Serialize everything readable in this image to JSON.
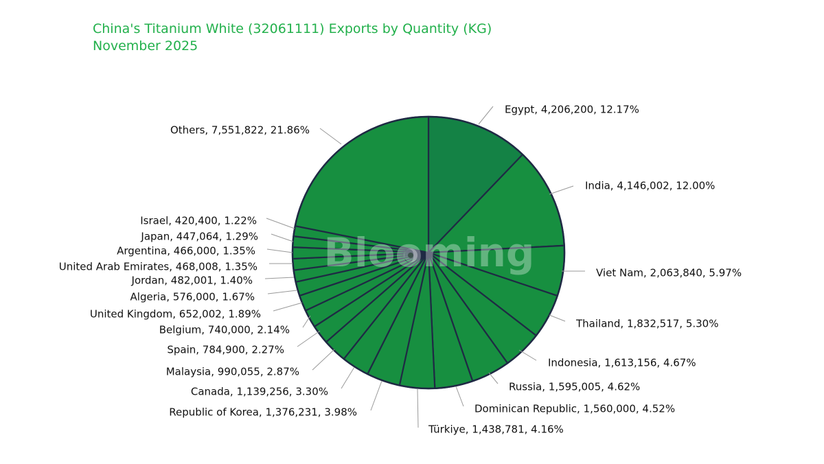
{
  "title_line1": "China's Titanium White (32061111) Exports by Quantity (KG)",
  "title_line2": "November 2025",
  "watermark": "Blooming",
  "colors": {
    "slice": "#178f40",
    "first_slice": "#148245",
    "border": "#1f2a44",
    "leader": "#999999",
    "title": "#22b04b"
  },
  "chart_data": {
    "type": "pie",
    "title": "China's Titanium White (32061111) Exports by Quantity (KG)",
    "subtitle": "November 2025",
    "slices": [
      {
        "name": "Egypt",
        "value": 4206200,
        "percent": "12.17%",
        "label": "Egypt, 4,206,200, 12.17%"
      },
      {
        "name": "India",
        "value": 4146002,
        "percent": "12.00%",
        "label": "India, 4,146,002, 12.00%"
      },
      {
        "name": "Viet Nam",
        "value": 2063840,
        "percent": "5.97%",
        "label": "Viet Nam, 2,063,840, 5.97%"
      },
      {
        "name": "Thailand",
        "value": 1832517,
        "percent": "5.30%",
        "label": "Thailand, 1,832,517, 5.30%"
      },
      {
        "name": "Indonesia",
        "value": 1613156,
        "percent": "4.67%",
        "label": "Indonesia, 1,613,156, 4.67%"
      },
      {
        "name": "Russia",
        "value": 1595005,
        "percent": "4.62%",
        "label": "Russia, 1,595,005, 4.62%"
      },
      {
        "name": "Dominican Republic",
        "value": 1560000,
        "percent": "4.52%",
        "label": "Dominican Republic, 1,560,000, 4.52%"
      },
      {
        "name": "Türkiye",
        "value": 1438781,
        "percent": "4.16%",
        "label": "Türkiye, 1,438,781, 4.16%"
      },
      {
        "name": "Republic of Korea",
        "value": 1376231,
        "percent": "3.98%",
        "label": "Republic of Korea, 1,376,231, 3.98%"
      },
      {
        "name": "Canada",
        "value": 1139256,
        "percent": "3.30%",
        "label": "Canada, 1,139,256, 3.30%"
      },
      {
        "name": "Malaysia",
        "value": 990055,
        "percent": "2.87%",
        "label": "Malaysia, 990,055, 2.87%"
      },
      {
        "name": "Spain",
        "value": 784900,
        "percent": "2.27%",
        "label": "Spain, 784,900, 2.27%"
      },
      {
        "name": "Belgium",
        "value": 740000,
        "percent": "2.14%",
        "label": "Belgium, 740,000, 2.14%"
      },
      {
        "name": "United Kingdom",
        "value": 652002,
        "percent": "1.89%",
        "label": "United Kingdom, 652,002, 1.89%"
      },
      {
        "name": "Algeria",
        "value": 576000,
        "percent": "1.67%",
        "label": "Algeria, 576,000, 1.67%"
      },
      {
        "name": "Jordan",
        "value": 482001,
        "percent": "1.40%",
        "label": "Jordan, 482,001, 1.40%"
      },
      {
        "name": "United Arab Emirates",
        "value": 468008,
        "percent": "1.35%",
        "label": "United Arab Emirates, 468,008, 1.35%"
      },
      {
        "name": "Argentina",
        "value": 466000,
        "percent": "1.35%",
        "label": "Argentina, 466,000, 1.35%"
      },
      {
        "name": "Japan",
        "value": 447064,
        "percent": "1.29%",
        "label": "Japan, 447,064, 1.29%"
      },
      {
        "name": "Israel",
        "value": 420400,
        "percent": "1.22%",
        "label": "Israel, 420,400, 1.22%"
      },
      {
        "name": "Others",
        "value": 7551822,
        "percent": "21.86%",
        "label": "Others, 7,551,822, 21.86%"
      }
    ]
  }
}
